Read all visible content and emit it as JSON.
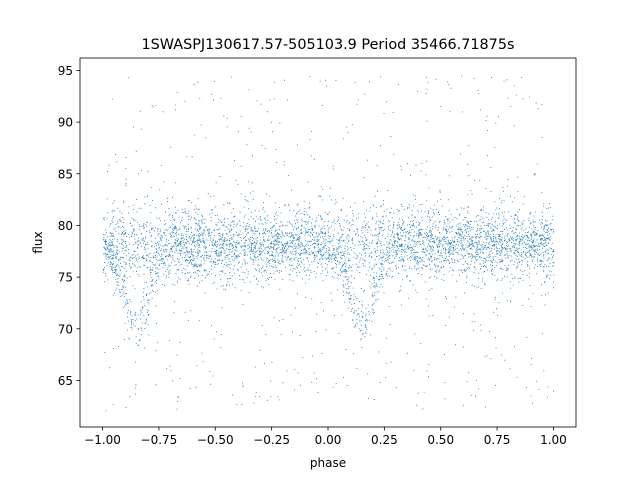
{
  "chart_data": {
    "type": "scatter",
    "title": "1SWASPJ130617.57-505103.9 Period 35466.71875s",
    "xlabel": "phase",
    "ylabel": "flux",
    "xlim": [
      -1.1,
      1.1
    ],
    "ylim": [
      60.5,
      96.2
    ],
    "x_ticks": [
      -1.0,
      -0.75,
      -0.5,
      -0.25,
      0.0,
      0.25,
      0.5,
      0.75,
      1.0
    ],
    "x_tick_labels": [
      "−1.00",
      "−0.75",
      "−0.50",
      "−0.25",
      "0.00",
      "0.25",
      "0.50",
      "0.75",
      "1.00"
    ],
    "y_ticks": [
      65,
      70,
      75,
      80,
      85,
      90,
      95
    ],
    "y_tick_labels": [
      "65",
      "70",
      "75",
      "80",
      "85",
      "90",
      "95"
    ],
    "grid": false,
    "marker_color": "#1f77b4",
    "series": [
      {
        "x_range": [
          -1.0,
          1.0
        ],
        "baseline_flux": 78.2,
        "core_scatter_sd": 2.0,
        "core_band": [
          74.5,
          82.0
        ],
        "upper_tail_max": 94.5,
        "lower_tail_min": 62.0,
        "eclipse_min_phases": [
          -0.85,
          0.15
        ],
        "eclipse_min_flux": 70.5
      }
    ]
  }
}
